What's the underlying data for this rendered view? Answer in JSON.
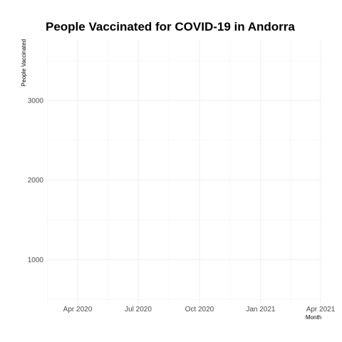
{
  "chart_data": {
    "type": "line",
    "title": "People Vaccinated for COVID-19 in Andorra",
    "xlabel": "Month",
    "ylabel": "People Vaccinated",
    "x_scale": "date",
    "x_ticks": [
      {
        "value": "2020-04-01",
        "label": "Apr 2020"
      },
      {
        "value": "2020-07-01",
        "label": "Jul 2020"
      },
      {
        "value": "2020-10-01",
        "label": "Oct 2020"
      },
      {
        "value": "2021-01-01",
        "label": "Jan 2021"
      },
      {
        "value": "2021-04-01",
        "label": "Apr 2021"
      }
    ],
    "y_ticks": [
      1000,
      2000,
      3000
    ],
    "ylim": [
      450,
      3760
    ],
    "xlim": [
      "2020-02-15",
      "2021-04-01"
    ],
    "grid": true,
    "series": [
      {
        "x": [],
        "y": []
      }
    ]
  }
}
